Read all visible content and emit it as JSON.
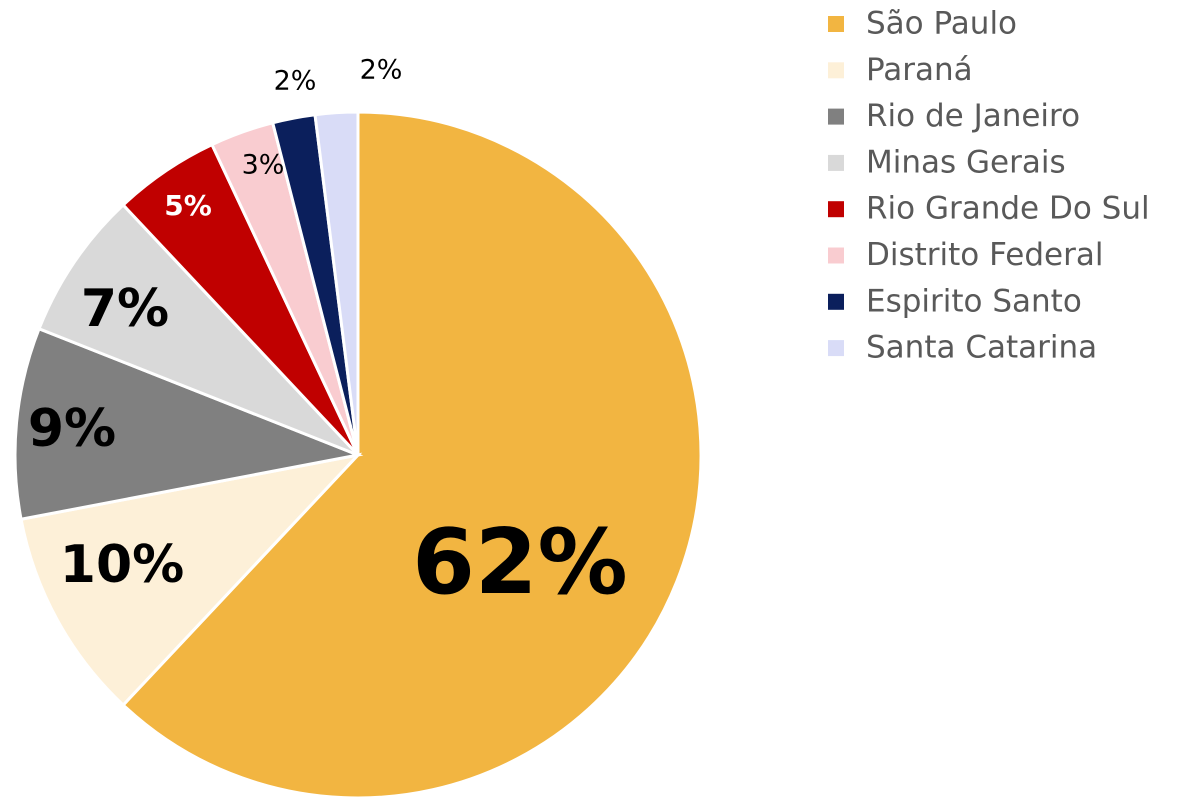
{
  "chart_data": {
    "type": "pie",
    "categories": [
      "São Paulo",
      "Paraná",
      "Rio de Janeiro",
      "Minas Gerais",
      "Rio Grande Do Sul",
      "Distrito Federal",
      "Espirito Santo",
      "Santa Catarina"
    ],
    "values": [
      62,
      10,
      9,
      7,
      5,
      3,
      2,
      2
    ],
    "value_labels": [
      "62%",
      "10%",
      "9%",
      "7%",
      "5%",
      "3%",
      "2%",
      "2%"
    ],
    "colors": [
      "#F2B541",
      "#FDF0D8",
      "#808080",
      "#D9D9D9",
      "#C00000",
      "#F9CCD0",
      "#0B1F5C",
      "#D9DCF7"
    ],
    "legend": "right"
  }
}
